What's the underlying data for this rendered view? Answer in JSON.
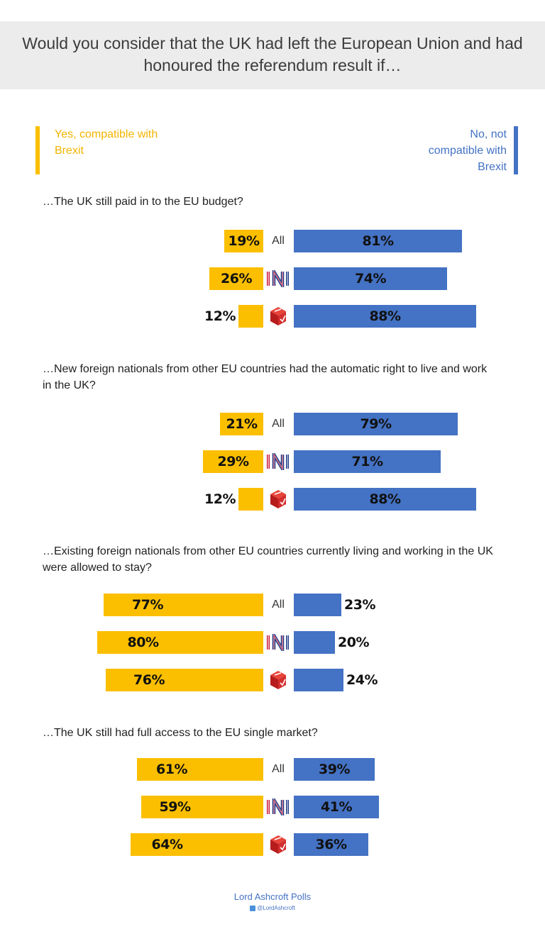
{
  "title": "Would you consider that the UK had left the European Union and had honoured the referendum result if…",
  "legend": {
    "yes_label": "Yes, compatible with Brexit",
    "no_label": "No, not compatible with Brexit"
  },
  "colors": {
    "yes": "#fbbf00",
    "no": "#4472c4"
  },
  "footer": {
    "brand": "Lord Ashcroft Polls",
    "handle": "@LordAshcroft"
  },
  "chart_data": {
    "type": "bar",
    "orientation": "horizontal-diverging",
    "scale": [
      0,
      100
    ],
    "series_names": [
      "Yes, compatible with Brexit",
      "No, not compatible with Brexit"
    ],
    "groups": [
      {
        "question": "…The UK still paid in to the EU budget?",
        "rows": [
          {
            "segment": "All",
            "yes": 19,
            "no": 81
          },
          {
            "segment": "IN",
            "icon": "in-logo-icon",
            "yes": 26,
            "no": 74
          },
          {
            "segment": "",
            "icon": "leave-box-icon",
            "yes": 12,
            "no": 88
          }
        ]
      },
      {
        "question": "…New foreign nationals from other EU countries had the automatic right to live and work in the UK?",
        "rows": [
          {
            "segment": "All",
            "yes": 21,
            "no": 79
          },
          {
            "segment": "IN",
            "icon": "in-logo-icon",
            "yes": 29,
            "no": 71
          },
          {
            "segment": "",
            "icon": "leave-box-icon",
            "yes": 12,
            "no": 88
          }
        ]
      },
      {
        "question": "…Existing foreign nationals from other EU countries currently living and working in the UK were allowed to stay?",
        "rows": [
          {
            "segment": "All",
            "yes": 77,
            "no": 23
          },
          {
            "segment": "IN",
            "icon": "in-logo-icon",
            "yes": 80,
            "no": 20
          },
          {
            "segment": "",
            "icon": "leave-box-icon",
            "yes": 76,
            "no": 24
          }
        ]
      },
      {
        "question": "…The UK still had full access to the EU single market?",
        "rows": [
          {
            "segment": "All",
            "yes": 61,
            "no": 39
          },
          {
            "segment": "IN",
            "icon": "in-logo-icon",
            "yes": 59,
            "no": 41
          },
          {
            "segment": "",
            "icon": "leave-box-icon",
            "yes": 64,
            "no": 36
          }
        ]
      }
    ]
  }
}
